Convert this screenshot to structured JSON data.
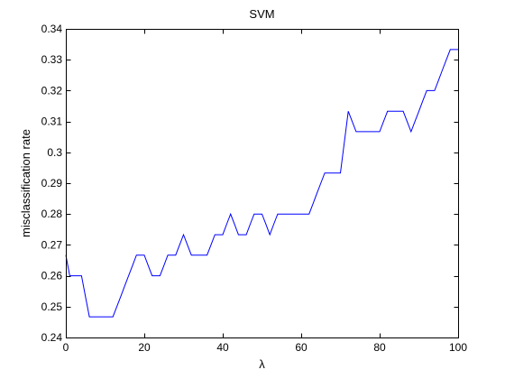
{
  "chart_data": {
    "type": "line",
    "title": "SVM",
    "xlabel": "λ",
    "ylabel": "misclassification rate",
    "xlim": [
      0,
      100
    ],
    "ylim": [
      0.24,
      0.34
    ],
    "xticks": [
      0,
      20,
      40,
      60,
      80,
      100
    ],
    "yticks": [
      0.24,
      0.25,
      0.26,
      0.27,
      0.28,
      0.29,
      0.3,
      0.31,
      0.32,
      0.33,
      0.34
    ],
    "xtick_labels": [
      "0",
      "20",
      "40",
      "60",
      "80",
      "100"
    ],
    "ytick_labels": [
      "0.24",
      "0.25",
      "0.26",
      "0.27",
      "0.28",
      "0.29",
      "0.3",
      "0.31",
      "0.32",
      "0.33",
      "0.34"
    ],
    "grid": false,
    "series": [
      {
        "color": "#0000ff",
        "x": [
          0,
          1,
          2,
          3,
          4,
          5,
          6,
          7,
          8,
          9,
          10,
          11,
          12,
          13,
          14,
          15,
          16,
          17,
          18,
          19,
          20,
          21,
          22,
          23,
          24,
          25,
          26,
          27,
          28,
          29,
          30,
          31,
          32,
          33,
          34,
          35,
          36,
          37,
          38,
          39,
          40,
          41,
          42,
          43,
          44,
          45,
          46,
          47,
          48,
          49,
          50,
          51,
          52,
          53,
          54,
          55,
          56,
          57,
          58,
          59,
          60,
          61,
          62,
          63,
          64,
          65,
          66,
          67,
          68,
          69,
          70,
          71,
          72,
          73,
          74,
          75,
          76,
          77,
          78,
          79,
          80,
          81,
          82,
          83,
          84,
          85,
          86,
          87,
          88,
          89,
          90,
          91,
          92,
          93,
          94,
          95,
          96,
          97,
          98,
          99,
          100
        ],
        "y": [
          0.2667,
          0.26,
          0.26,
          0.26,
          0.26,
          0.2533,
          0.2467,
          0.2467,
          0.2467,
          0.2467,
          0.2467,
          0.2467,
          0.2467,
          0.25,
          0.2533,
          0.2567,
          0.26,
          0.2633,
          0.2667,
          0.2667,
          0.2667,
          0.2633,
          0.26,
          0.26,
          0.26,
          0.2633,
          0.2667,
          0.2667,
          0.2667,
          0.27,
          0.2733,
          0.27,
          0.2667,
          0.2667,
          0.2667,
          0.2667,
          0.2667,
          0.27,
          0.2733,
          0.2733,
          0.2733,
          0.2767,
          0.28,
          0.2767,
          0.2733,
          0.2733,
          0.2733,
          0.2767,
          0.28,
          0.28,
          0.28,
          0.2767,
          0.2733,
          0.2767,
          0.28,
          0.28,
          0.28,
          0.28,
          0.28,
          0.28,
          0.28,
          0.28,
          0.28,
          0.2833,
          0.2867,
          0.29,
          0.2933,
          0.2933,
          0.2933,
          0.2933,
          0.2933,
          0.3033,
          0.3133,
          0.31,
          0.3067,
          0.3067,
          0.3067,
          0.3067,
          0.3067,
          0.3067,
          0.3067,
          0.31,
          0.3133,
          0.3133,
          0.3133,
          0.3133,
          0.3133,
          0.31,
          0.3067,
          0.31,
          0.3133,
          0.3167,
          0.32,
          0.32,
          0.32,
          0.3233,
          0.3267,
          0.33,
          0.3333,
          0.3333,
          0.3333
        ]
      }
    ]
  }
}
